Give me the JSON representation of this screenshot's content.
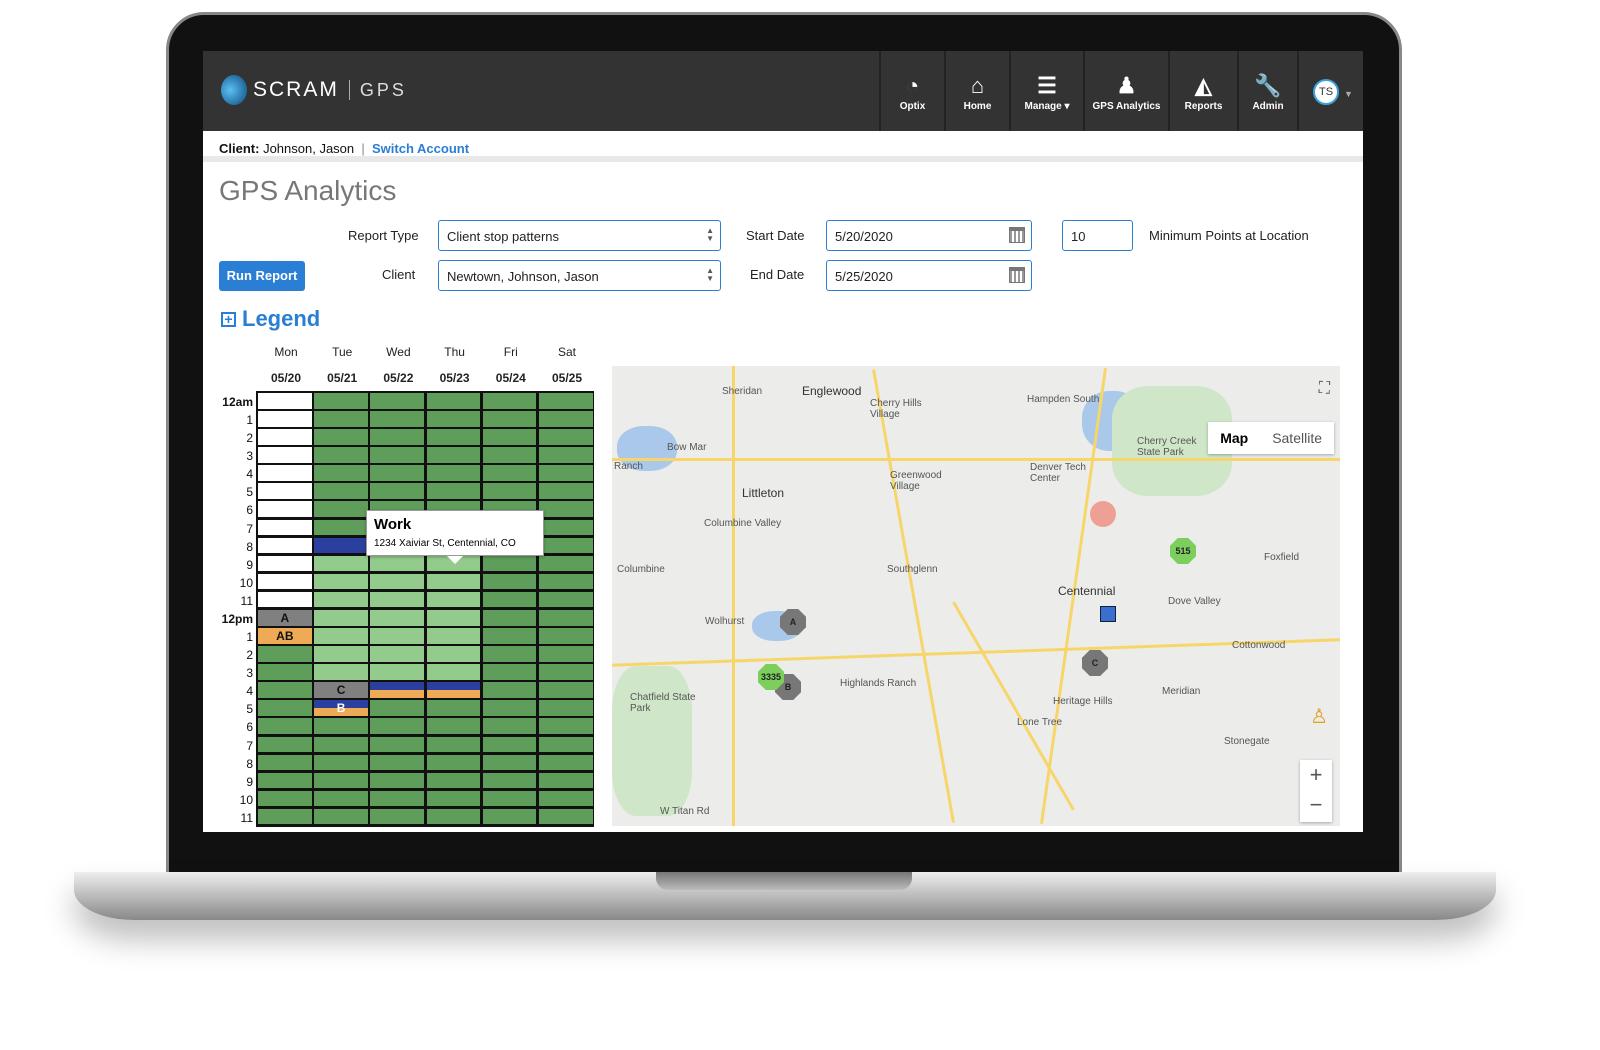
{
  "header": {
    "brand": "SCRAM",
    "brand_sub": "GPS",
    "nav": [
      {
        "label": "Optix",
        "icon": "gauge-icon",
        "glyph": "◔"
      },
      {
        "label": "Home",
        "icon": "home-icon",
        "glyph": "⌂"
      },
      {
        "label": "Manage ▾",
        "icon": "list-icon",
        "glyph": "☰"
      },
      {
        "label": "GPS Analytics",
        "icon": "person-pin-icon",
        "glyph": "♟"
      },
      {
        "label": "Reports",
        "icon": "chart-icon",
        "glyph": "◭"
      },
      {
        "label": "Admin",
        "icon": "wrench-icon",
        "glyph": "🔧"
      }
    ],
    "user_initials": "TS"
  },
  "client_bar": {
    "label": "Client:",
    "name": "Johnson, Jason",
    "separator": "|",
    "switch": "Switch Account"
  },
  "page_title": "GPS Analytics",
  "form": {
    "report_type_label": "Report Type",
    "report_type": "Client stop patterns",
    "client_label": "Client",
    "client": "Newtown, Johnson, Jason",
    "start_label": "Start Date",
    "start": "5/20/2020",
    "end_label": "End Date",
    "end": "5/25/2020",
    "min_points": "10",
    "min_points_label": "Minimum Points at Location",
    "run": "Run Report"
  },
  "legend": "Legend",
  "colors": {
    "w": "#ffffff",
    "g": "#5e9e5a",
    "l": "#93cb8c",
    "n": "#2b3f9e",
    "G": "#808080",
    "o": "#eeaa55",
    "accent": "#2a7fd4"
  },
  "schedule": {
    "days": [
      {
        "d": "Mon",
        "date": "05/20"
      },
      {
        "d": "Tue",
        "date": "05/21"
      },
      {
        "d": "Wed",
        "date": "05/22"
      },
      {
        "d": "Thu",
        "date": "05/23"
      },
      {
        "d": "Fri",
        "date": "05/24"
      },
      {
        "d": "Sat",
        "date": "05/25"
      }
    ],
    "hours": [
      "12am",
      "1",
      "2",
      "3",
      "4",
      "5",
      "6",
      "7",
      "8",
      "9",
      "10",
      "11",
      "12pm",
      "1",
      "2",
      "3",
      "4",
      "5",
      "6",
      "7",
      "8",
      "9",
      "10",
      "11"
    ],
    "columns": [
      [
        "w",
        "w",
        "w",
        "w",
        "w",
        "w",
        "w",
        "w",
        "w",
        "w",
        "w",
        "w",
        "G:A",
        "o:AB",
        "g",
        "g",
        "g",
        "g",
        "g",
        "g",
        "g",
        "g",
        "g",
        "g"
      ],
      [
        "g",
        "g",
        "g",
        "g",
        "g",
        "g",
        "g",
        "g",
        "n",
        "l",
        "l",
        "l",
        "l",
        "l",
        "l",
        "l",
        "G:C",
        "s:B",
        "g",
        "g",
        "g",
        "g",
        "g",
        "g"
      ],
      [
        "g",
        "g",
        "g",
        "g",
        "g",
        "g",
        "g",
        "g",
        "g",
        "l",
        "l",
        "l",
        "l",
        "l",
        "l",
        "l",
        "s",
        "g",
        "g",
        "g",
        "g",
        "g",
        "g",
        "g"
      ],
      [
        "g",
        "g",
        "g",
        "g",
        "g",
        "g",
        "g",
        "g",
        "g",
        "l",
        "l",
        "l",
        "l",
        "l",
        "l",
        "l",
        "s",
        "g",
        "g",
        "g",
        "g",
        "g",
        "g",
        "g"
      ],
      [
        "g",
        "g",
        "g",
        "g",
        "g",
        "g",
        "g",
        "g",
        "g",
        "g",
        "g",
        "g",
        "g",
        "g",
        "g",
        "g",
        "g",
        "g",
        "g",
        "g",
        "g",
        "g",
        "g",
        "g"
      ],
      [
        "g",
        "g",
        "g",
        "g",
        "g",
        "g",
        "g",
        "g",
        "g",
        "g",
        "g",
        "g",
        "g",
        "g",
        "g",
        "g",
        "g",
        "g",
        "g",
        "g",
        "g",
        "g",
        "g",
        "g"
      ]
    ]
  },
  "tooltip": {
    "title": "Work",
    "address": "1234 Xaiviar St, Centennial, CO"
  },
  "map": {
    "type_buttons": [
      "Map",
      "Satellite"
    ],
    "zoom_in": "+",
    "zoom_out": "−",
    "places": [
      "Sheridan",
      "Englewood",
      "Cherry Hills Village",
      "Bow Mar",
      "Littleton",
      "Greenwood Village",
      "Columbine Valley",
      "Columbine",
      "Southglenn",
      "Wolhurst",
      "Centennial",
      "Dove Valley",
      "Foxfield",
      "Cherry Creek State Park",
      "Hampden South",
      "Denver Tech Center",
      "Chatfield State Park",
      "Highlands Ranch",
      "Heritage Hills",
      "Lone Tree",
      "Meridian",
      "Cottonwood",
      "Stonegate",
      "W Titan Rd",
      "Ranch"
    ],
    "markers": [
      "A",
      "B",
      "C",
      "3335",
      "515"
    ]
  }
}
